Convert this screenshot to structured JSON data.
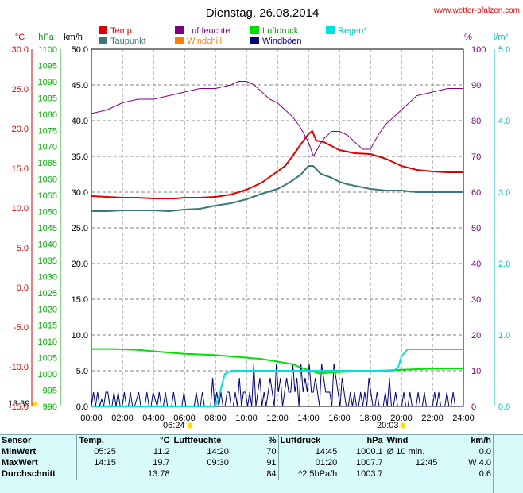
{
  "title": "Dienstag, 26.08.2014",
  "source": "www.wetter-pfalzen.com",
  "legend": [
    {
      "label": "Temp.",
      "color": "#e00000"
    },
    {
      "label": "Luftfeuchte",
      "color": "#800080"
    },
    {
      "label": "Luftdruck",
      "color": "#00e000"
    },
    {
      "label": "Regen*",
      "color": "#00e0e0"
    },
    {
      "label": "Taupunkt",
      "color": "#3a7878"
    },
    {
      "label": "Windchill",
      "color": "#ff8000"
    },
    {
      "label": "Windböen",
      "color": "#000080"
    }
  ],
  "axis_units": {
    "temp": "°C",
    "pressure": "hPa",
    "wind": "km/h",
    "humidity": "%",
    "rain": "l/m²"
  },
  "sun": {
    "sunrise": "06:24",
    "sunset": "20:03",
    "daylength": "13:39"
  },
  "stats": {
    "headers": {
      "sensor": "Sensor",
      "temp": "Temp.",
      "temp_unit": "°C",
      "hum": "Luftfeuchte",
      "hum_unit": "%",
      "press": "Luftdruck",
      "press_unit": "hPa",
      "wind": "Wind",
      "wind_unit": "km/h"
    },
    "rows": [
      {
        "label": "MinWert",
        "t_time": "05:25",
        "t_val": "11.2",
        "h_time": "14:20",
        "h_val": "70",
        "p_time": "14:45",
        "p_val": "1000.1",
        "w_label": "Ø 10 min.",
        "w_val": "0.0"
      },
      {
        "label": "MaxWert",
        "t_time": "14:15",
        "t_val": "19.7",
        "h_time": "09:30",
        "h_val": "91",
        "p_time": "01:20",
        "p_val": "1007.7",
        "w_label": "12:45",
        "w_val": "W 4.0"
      },
      {
        "label": "Durchschnitt",
        "t_time": "",
        "t_val": "13.78",
        "h_time": "",
        "h_val": "84",
        "p_time": "^2.5hPa/h",
        "p_val": "1003.7",
        "w_label": "",
        "w_val": "0.6"
      }
    ]
  },
  "chart_data": {
    "type": "line",
    "title": "Dienstag, 26.08.2014",
    "xlabel": "",
    "x_ticks": [
      "00:00",
      "02:00",
      "04:00",
      "06:00",
      "08:00",
      "10:00",
      "12:00",
      "14:00",
      "16:00",
      "18:00",
      "20:00",
      "22:00",
      "24:00"
    ],
    "axes": {
      "temp": {
        "unit": "°C",
        "ylim": [
          -15,
          30
        ],
        "ticks": [
          "30.0",
          "25.0",
          "20.0",
          "15.0",
          "10.0",
          "5.0",
          "0.0",
          "-5.0",
          "-10.0",
          "-15.0"
        ]
      },
      "pressure": {
        "unit": "hPa",
        "ylim": [
          990,
          1100
        ],
        "ticks": [
          "1100",
          "1095",
          "1090",
          "1085",
          "1080",
          "1075",
          "1070",
          "1065",
          "1060",
          "1055",
          "1050",
          "1045",
          "1040",
          "1035",
          "1030",
          "1025",
          "1020",
          "1015",
          "1010",
          "1005",
          "1000",
          "995",
          "990"
        ]
      },
      "wind": {
        "unit": "km/h",
        "ylim": [
          0,
          50
        ],
        "ticks": [
          "50.0",
          "45.0",
          "40.0",
          "35.0",
          "30.0",
          "25.0",
          "20.0",
          "15.0",
          "10.0",
          "5.0",
          "0.0"
        ]
      },
      "humidity": {
        "unit": "%",
        "ylim": [
          0,
          100
        ],
        "ticks": [
          "100",
          "90",
          "80",
          "70",
          "60",
          "50",
          "40",
          "30",
          "20",
          "10",
          "0"
        ]
      },
      "rain": {
        "unit": "l/m²",
        "ylim": [
          0,
          5
        ],
        "ticks": [
          "5.0",
          "4.0",
          "3.0",
          "2.0",
          "1.0",
          "0.0"
        ]
      }
    },
    "grid": true,
    "series": [
      {
        "name": "Temp.",
        "axis": "temp",
        "color": "#e00000",
        "x": [
          0,
          1,
          2,
          3,
          4,
          5,
          5.42,
          6,
          7,
          8,
          9,
          10,
          11,
          12,
          12.5,
          13,
          13.5,
          13.8,
          14,
          14.25,
          14.5,
          15,
          15.5,
          16,
          17,
          18,
          19,
          20,
          21,
          22,
          23,
          24
        ],
        "y": [
          11.5,
          11.4,
          11.3,
          11.3,
          11.2,
          11.2,
          11.2,
          11.3,
          11.3,
          11.4,
          11.7,
          12.3,
          13.2,
          14.6,
          15.3,
          16.6,
          18.0,
          18.8,
          19.3,
          19.7,
          18.5,
          18.3,
          17.8,
          17.3,
          16.9,
          16.8,
          16.2,
          15.3,
          14.8,
          14.6,
          14.5,
          14.5
        ]
      },
      {
        "name": "Taupunkt",
        "axis": "temp",
        "color": "#3a7878",
        "x": [
          0,
          1,
          2,
          3,
          4,
          5,
          6,
          7,
          8,
          9,
          10,
          11,
          12,
          12.5,
          13,
          13.5,
          14,
          14.3,
          14.8,
          15.5,
          16,
          16.5,
          17,
          17.5,
          18,
          19,
          20,
          21,
          22,
          23,
          24
        ],
        "y": [
          9.6,
          9.6,
          9.7,
          9.7,
          9.7,
          9.6,
          9.8,
          9.9,
          10.3,
          10.6,
          11.1,
          11.8,
          12.4,
          12.9,
          13.5,
          14.2,
          15.3,
          15.3,
          14.3,
          13.8,
          13.3,
          13.0,
          12.8,
          12.6,
          12.4,
          12.2,
          12.2,
          12.0,
          12.0,
          12.0,
          12.0
        ]
      },
      {
        "name": "Luftfeuchte",
        "axis": "humidity",
        "color": "#800080",
        "x": [
          0,
          1,
          2,
          3,
          4,
          5,
          6,
          7,
          8,
          9,
          9.5,
          10,
          10.5,
          11,
          11.5,
          12,
          12.5,
          13,
          13.5,
          14,
          14.33,
          14.7,
          15,
          15.5,
          16,
          16.5,
          17,
          17.5,
          18,
          18.5,
          19,
          19.5,
          20,
          20.5,
          21,
          22,
          23,
          24
        ],
        "y": [
          82,
          83,
          85,
          86,
          86,
          87,
          88,
          89,
          89,
          90,
          91,
          91,
          90,
          88,
          86,
          85,
          83,
          81,
          78,
          74,
          70,
          73,
          75,
          77,
          77,
          76,
          74,
          72,
          72,
          76,
          79,
          81,
          83,
          85,
          87,
          88,
          89,
          89
        ]
      },
      {
        "name": "Luftdruck",
        "axis": "pressure",
        "color": "#00e000",
        "x": [
          0,
          1,
          1.33,
          2,
          3,
          4,
          5,
          6,
          7,
          8,
          9,
          10,
          11,
          12,
          13,
          13.5,
          14,
          14.75,
          15,
          16,
          17,
          18,
          19,
          20,
          21,
          22,
          23,
          24
        ],
        "y": [
          1007.7,
          1007.7,
          1007.7,
          1007.6,
          1007.4,
          1007.0,
          1006.6,
          1006.2,
          1006.0,
          1005.8,
          1005.4,
          1005.0,
          1004.6,
          1003.8,
          1003.0,
          1002.0,
          1001.2,
          1000.1,
          1000.3,
          1000.6,
          1000.8,
          1001.0,
          1001.1,
          1001.3,
          1001.5,
          1001.6,
          1001.7,
          1001.7
        ]
      },
      {
        "name": "Regen*",
        "axis": "rain",
        "color": "#00e0e0",
        "x": [
          0,
          8,
          8.3,
          8.6,
          9,
          9.5,
          10,
          12,
          14,
          16,
          18,
          19.5,
          19.8,
          20,
          20.4,
          21,
          22,
          24
        ],
        "y": [
          0,
          0,
          0.2,
          0.45,
          0.5,
          0.5,
          0.5,
          0.5,
          0.5,
          0.5,
          0.5,
          0.5,
          0.55,
          0.7,
          0.8,
          0.8,
          0.8,
          0.8
        ]
      }
    ],
    "windgusts": {
      "name": "Windböen",
      "axis": "wind",
      "color": "#000080",
      "values": [
        0,
        2,
        0,
        2,
        0,
        1,
        0,
        2,
        2,
        0,
        0,
        2,
        0,
        2,
        0,
        0,
        2,
        0,
        0,
        2,
        0,
        0,
        1,
        2,
        0,
        0,
        0,
        2,
        0,
        0,
        2,
        1,
        0,
        2,
        0,
        0,
        2,
        0,
        0,
        0,
        2,
        0,
        0,
        0,
        0,
        2,
        0,
        0,
        0,
        0,
        0,
        2,
        0,
        0,
        2,
        0,
        0,
        0,
        0,
        4,
        0,
        2,
        0,
        2,
        0,
        0,
        2,
        2,
        0,
        0,
        2,
        0,
        4,
        0,
        2,
        2,
        0,
        2,
        0,
        6,
        0,
        2,
        4,
        0,
        2,
        0,
        2,
        4,
        2,
        0,
        6,
        2,
        4,
        0,
        2,
        4,
        2,
        2,
        6,
        2,
        4,
        0,
        6,
        2,
        4,
        2,
        6,
        2,
        2,
        4,
        2,
        0,
        6,
        4,
        2,
        2,
        2,
        0,
        6,
        4,
        2,
        0,
        4,
        2,
        0,
        0,
        2,
        0,
        2,
        0,
        0,
        2,
        0,
        2,
        0,
        4,
        2,
        0,
        0,
        2,
        0,
        0,
        0,
        2,
        0,
        4,
        0,
        0,
        2,
        0,
        0,
        0,
        2,
        0,
        0,
        2,
        0,
        0,
        0,
        2,
        0,
        0,
        2,
        0,
        0,
        0,
        0,
        2,
        0,
        2,
        0,
        0,
        0,
        2,
        0,
        0,
        2,
        0,
        0,
        0,
        0,
        0
      ]
    }
  }
}
